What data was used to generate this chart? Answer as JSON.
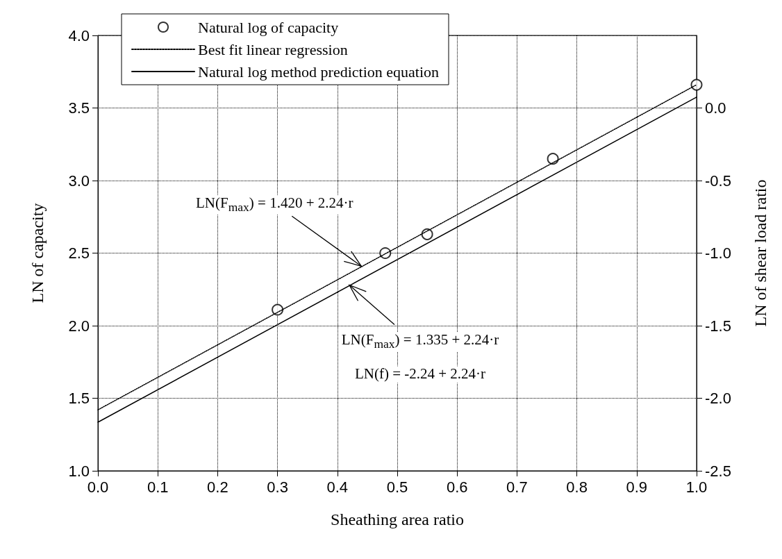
{
  "chart_data": {
    "type": "scatter",
    "xlabel": "Sheathing area ratio",
    "ylabel": "LN of capacity",
    "y2label": "LN of shear load ratio",
    "series": [
      {
        "name": "Natural log of capacity",
        "marker": "circle",
        "color": "#000000",
        "x": [
          0.3,
          0.48,
          0.55,
          0.76,
          1.0
        ],
        "values": [
          2.11,
          2.5,
          2.63,
          3.15,
          3.66
        ]
      },
      {
        "name": "Best fit linear regression",
        "type": "line",
        "line_style": "dotted",
        "color": "#000000",
        "x": [
          0,
          1
        ],
        "values": [
          1.42,
          3.66
        ]
      },
      {
        "name": "Natural log method prediction equation",
        "type": "line",
        "line_style": "solid",
        "color": "#000000",
        "x": [
          0,
          1
        ],
        "values": [
          1.335,
          3.575
        ]
      }
    ],
    "xlim": [
      0,
      1
    ],
    "xticks": [
      {
        "value": 0,
        "label": "0.0"
      },
      {
        "value": 0.1,
        "label": "0.1"
      },
      {
        "value": 0.2,
        "label": "0.2"
      },
      {
        "value": 0.3,
        "label": "0.3"
      },
      {
        "value": 0.4,
        "label": "0.4"
      },
      {
        "value": 0.5,
        "label": "0.5"
      },
      {
        "value": 0.6,
        "label": "0.6"
      },
      {
        "value": 0.7,
        "label": "0.7"
      },
      {
        "value": 0.8,
        "label": "0.8"
      },
      {
        "value": 0.9,
        "label": "0.9"
      },
      {
        "value": 1,
        "label": "1.0"
      }
    ],
    "ylim": [
      1,
      4
    ],
    "yticks": [
      {
        "value": 1,
        "label": "1.0"
      },
      {
        "value": 1.5,
        "label": "1.5"
      },
      {
        "value": 2,
        "label": "2.0"
      },
      {
        "value": 2.5,
        "label": "2.5"
      },
      {
        "value": 3,
        "label": "3.0"
      },
      {
        "value": 3.5,
        "label": "3.5"
      },
      {
        "value": 4,
        "label": "4.0"
      }
    ],
    "y2lim": [
      -2.5,
      0.5
    ],
    "y2ticks": [
      {
        "value": -2.5,
        "label": "-2.5"
      },
      {
        "value": -2,
        "label": "-2.0"
      },
      {
        "value": -1.5,
        "label": "-1.5"
      },
      {
        "value": -1,
        "label": "-1.0"
      },
      {
        "value": -0.5,
        "label": "-0.5"
      },
      {
        "value": 0,
        "label": "0.0"
      }
    ],
    "grid": true,
    "legend": "top left",
    "annotations": [
      {
        "text": "LN(F$_{max}$) = 1.420 + 2.24·r",
        "x": 0.44,
        "y": 2.41
      },
      {
        "text": "LN(F$_{max}$) = 1.335 + 2.24·r",
        "x": 0.42,
        "y": 2.28
      },
      "LN(f) = -2.24 + 2.24·r"
    ]
  }
}
